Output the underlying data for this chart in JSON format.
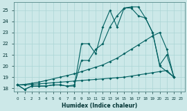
{
  "xlabel": "Humidex (Indice chaleur)",
  "bg_color": "#cce8e8",
  "grid_color": "#aad4d4",
  "line_color": "#006060",
  "xlim": [
    -0.5,
    23.5
  ],
  "ylim": [
    17.7,
    25.7
  ],
  "yticks": [
    18,
    19,
    20,
    21,
    22,
    23,
    24,
    25
  ],
  "xticks": [
    0,
    1,
    2,
    3,
    4,
    5,
    6,
    7,
    8,
    9,
    10,
    11,
    12,
    13,
    14,
    15,
    16,
    17,
    18,
    19,
    20,
    21,
    22,
    23
  ],
  "series1_x": [
    0,
    1,
    2,
    3,
    4,
    5,
    6,
    7,
    8,
    9,
    10,
    11,
    12,
    13,
    14,
    15,
    16,
    17,
    18,
    19,
    20,
    21,
    22
  ],
  "series1_y": [
    18.3,
    17.9,
    18.2,
    18.2,
    18.2,
    18.3,
    18.3,
    18.2,
    18.2,
    22.0,
    22.0,
    21.1,
    23.5,
    25.0,
    23.5,
    25.2,
    25.2,
    24.5,
    24.3,
    23.0,
    20.1,
    21.0,
    19.0
  ],
  "series2_x": [
    0,
    1,
    2,
    3,
    4,
    5,
    6,
    7,
    8,
    9,
    10,
    11,
    12,
    13,
    14,
    15,
    16,
    17,
    18,
    19,
    20,
    22
  ],
  "series2_y": [
    18.3,
    17.9,
    18.2,
    18.2,
    18.2,
    18.3,
    18.3,
    18.2,
    18.3,
    20.5,
    20.5,
    21.5,
    22.0,
    23.5,
    24.5,
    25.2,
    25.3,
    25.3,
    24.3,
    23.0,
    20.0,
    19.0
  ],
  "series3_x": [
    0,
    1,
    2,
    3,
    4,
    5,
    6,
    7,
    8,
    9,
    10,
    11,
    12,
    13,
    14,
    15,
    16,
    17,
    18,
    19,
    20,
    21,
    22
  ],
  "series3_y": [
    18.3,
    18.3,
    18.35,
    18.4,
    18.45,
    18.5,
    18.55,
    18.6,
    18.65,
    18.7,
    18.75,
    18.8,
    18.85,
    18.9,
    18.95,
    19.0,
    19.1,
    19.2,
    19.3,
    19.4,
    19.5,
    19.6,
    19.0
  ],
  "series4_x": [
    0,
    1,
    2,
    3,
    4,
    5,
    6,
    7,
    8,
    9,
    10,
    11,
    12,
    13,
    14,
    15,
    16,
    17,
    18,
    19,
    20,
    21,
    22
  ],
  "series4_y": [
    18.3,
    18.35,
    18.45,
    18.55,
    18.7,
    18.85,
    19.0,
    19.15,
    19.3,
    19.5,
    19.7,
    19.9,
    20.1,
    20.4,
    20.7,
    21.1,
    21.5,
    21.9,
    22.3,
    22.7,
    23.0,
    21.5,
    19.0
  ]
}
